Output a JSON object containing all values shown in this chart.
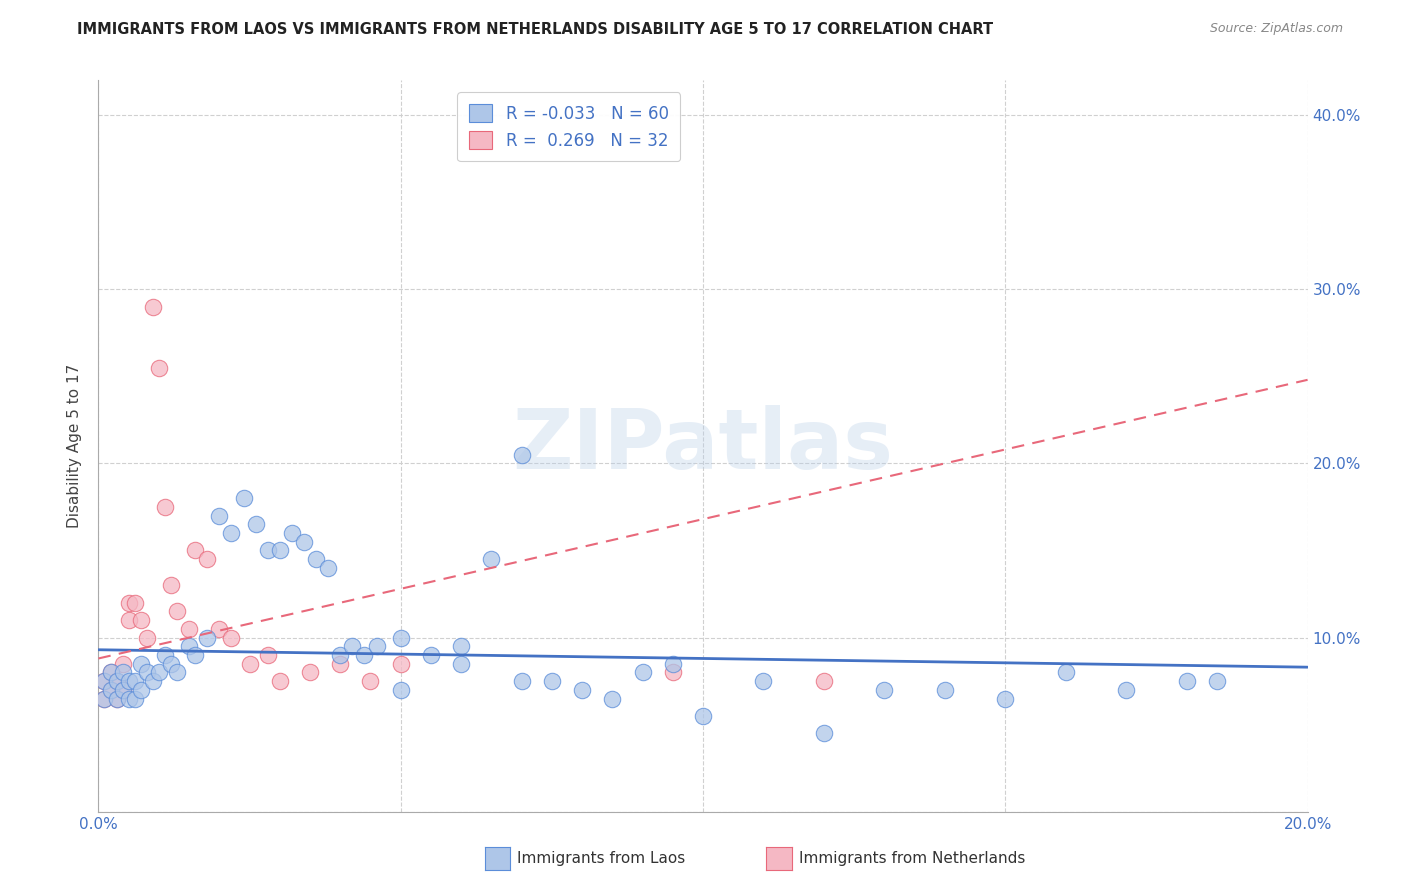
{
  "title": "IMMIGRANTS FROM LAOS VS IMMIGRANTS FROM NETHERLANDS DISABILITY AGE 5 TO 17 CORRELATION CHART",
  "source": "Source: ZipAtlas.com",
  "ylabel": "Disability Age 5 to 17",
  "xlim": [
    0.0,
    0.2
  ],
  "ylim": [
    0.0,
    0.42
  ],
  "xticks": [
    0.0,
    0.05,
    0.1,
    0.15,
    0.2
  ],
  "xticklabels": [
    "0.0%",
    "",
    "",
    "",
    "20.0%"
  ],
  "yticks": [
    0.0,
    0.1,
    0.2,
    0.3,
    0.4
  ],
  "yticklabels_left": [
    "",
    "",
    "",
    "",
    ""
  ],
  "yticklabels_right": [
    "",
    "10.0%",
    "20.0%",
    "30.0%",
    "40.0%"
  ],
  "legend_r1": "-0.033",
  "legend_n1": "60",
  "legend_r2": "0.269",
  "legend_n2": "32",
  "color_laos_fill": "#aec6e8",
  "color_laos_edge": "#5b8dd9",
  "color_netherlands_fill": "#f5b8c4",
  "color_netherlands_edge": "#e8687a",
  "color_laos_line": "#4472c4",
  "color_netherlands_line": "#e8687a",
  "watermark": "ZIPatlas",
  "laos_x": [
    0.001,
    0.001,
    0.002,
    0.002,
    0.003,
    0.003,
    0.004,
    0.004,
    0.005,
    0.005,
    0.006,
    0.006,
    0.007,
    0.007,
    0.008,
    0.009,
    0.01,
    0.011,
    0.012,
    0.013,
    0.015,
    0.016,
    0.018,
    0.02,
    0.022,
    0.024,
    0.026,
    0.028,
    0.03,
    0.032,
    0.034,
    0.036,
    0.038,
    0.04,
    0.042,
    0.044,
    0.046,
    0.05,
    0.055,
    0.06,
    0.065,
    0.07,
    0.075,
    0.08,
    0.085,
    0.09,
    0.095,
    0.1,
    0.11,
    0.12,
    0.13,
    0.14,
    0.15,
    0.16,
    0.17,
    0.18,
    0.05,
    0.06,
    0.07,
    0.185
  ],
  "laos_y": [
    0.075,
    0.065,
    0.08,
    0.07,
    0.075,
    0.065,
    0.08,
    0.07,
    0.075,
    0.065,
    0.075,
    0.065,
    0.085,
    0.07,
    0.08,
    0.075,
    0.08,
    0.09,
    0.085,
    0.08,
    0.095,
    0.09,
    0.1,
    0.17,
    0.16,
    0.18,
    0.165,
    0.15,
    0.15,
    0.16,
    0.155,
    0.145,
    0.14,
    0.09,
    0.095,
    0.09,
    0.095,
    0.1,
    0.09,
    0.095,
    0.145,
    0.205,
    0.075,
    0.07,
    0.065,
    0.08,
    0.085,
    0.055,
    0.075,
    0.045,
    0.07,
    0.07,
    0.065,
    0.08,
    0.07,
    0.075,
    0.07,
    0.085,
    0.075,
    0.075
  ],
  "neth_x": [
    0.001,
    0.001,
    0.002,
    0.002,
    0.003,
    0.003,
    0.004,
    0.004,
    0.005,
    0.005,
    0.006,
    0.007,
    0.008,
    0.009,
    0.01,
    0.011,
    0.012,
    0.013,
    0.015,
    0.016,
    0.018,
    0.02,
    0.022,
    0.025,
    0.028,
    0.03,
    0.035,
    0.04,
    0.045,
    0.05,
    0.12,
    0.095
  ],
  "neth_y": [
    0.075,
    0.065,
    0.08,
    0.07,
    0.075,
    0.065,
    0.085,
    0.07,
    0.11,
    0.12,
    0.12,
    0.11,
    0.1,
    0.29,
    0.255,
    0.175,
    0.13,
    0.115,
    0.105,
    0.15,
    0.145,
    0.105,
    0.1,
    0.085,
    0.09,
    0.075,
    0.08,
    0.085,
    0.075,
    0.085,
    0.075,
    0.08
  ],
  "laos_trendline_x": [
    0.0,
    0.2
  ],
  "laos_trendline_y": [
    0.093,
    0.083
  ],
  "neth_trendline_x": [
    0.0,
    0.2
  ],
  "neth_trendline_y": [
    0.088,
    0.248
  ]
}
